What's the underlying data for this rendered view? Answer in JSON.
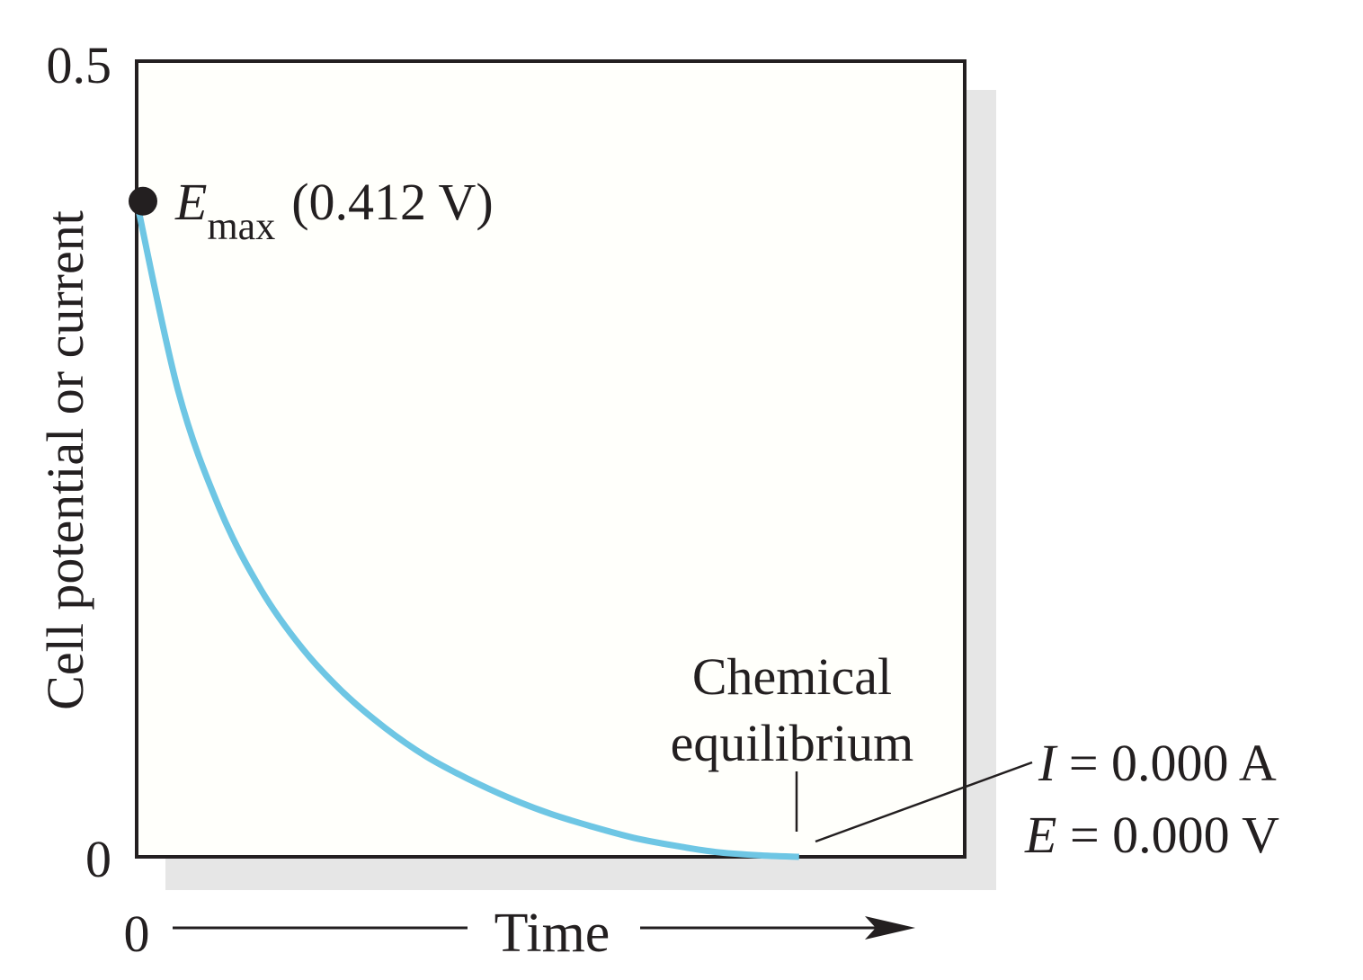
{
  "chart_data": {
    "type": "line",
    "title": "",
    "xlabel": "Time",
    "ylabel": "Cell potential or current",
    "x_tick_labels": [
      "0"
    ],
    "y_tick_labels": [
      "0.5",
      "0"
    ],
    "xlim": [
      0,
      1
    ],
    "ylim": [
      0,
      0.5
    ],
    "series": [
      {
        "color": "#6ec6e4",
        "x": [
          0,
          0.05,
          0.1,
          0.15,
          0.2,
          0.25,
          0.3,
          0.35,
          0.4,
          0.45,
          0.5,
          0.55,
          0.6,
          0.65,
          0.7,
          0.75,
          0.8
        ],
        "y": [
          0.412,
          0.293,
          0.219,
          0.168,
          0.131,
          0.103,
          0.081,
          0.063,
          0.049,
          0.037,
          0.027,
          0.019,
          0.012,
          0.007,
          0.003,
          0.001,
          0.0
        ]
      }
    ],
    "start_marker": {
      "x": 0,
      "y": 0.412,
      "symbol": "E",
      "subscript": "max",
      "value_text": "(0.412 V)"
    },
    "annotations": {
      "equilibrium_label": [
        "Chemical",
        "equilibrium"
      ],
      "current_line": {
        "symbol": "I",
        "text": " = 0.000 A"
      },
      "potential_line": {
        "symbol": "E",
        "text": " = 0.000 V"
      }
    },
    "colors": {
      "plot_background": "#fffffb",
      "shadow": "#e6e6e6",
      "frame": "#231f20",
      "marker": "#231f20"
    }
  }
}
